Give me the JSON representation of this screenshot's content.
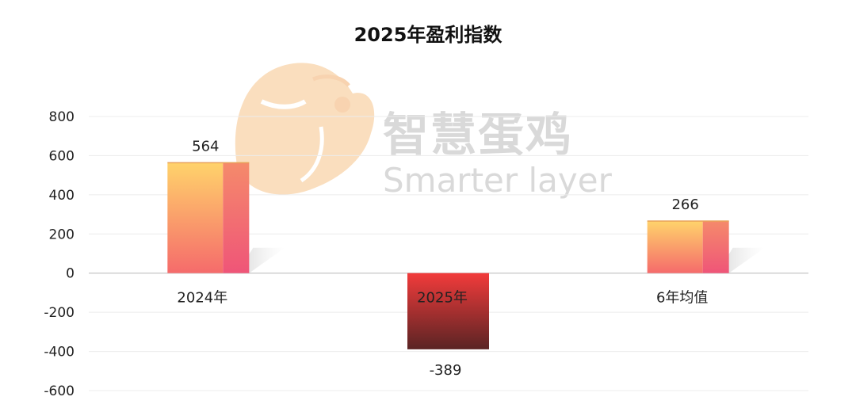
{
  "chart_data": {
    "type": "bar",
    "title": "2025年盈利指数",
    "categories": [
      "2024年",
      "2025年",
      "6年均值"
    ],
    "values": [
      564,
      -389,
      266
    ],
    "ylim": [
      -600,
      800
    ],
    "yticks": [
      800,
      600,
      400,
      200,
      0,
      -200,
      -400,
      -600
    ],
    "grid": true,
    "colors": {
      "positive_top": "#ffd36b",
      "positive_bottom": "#f56b6b",
      "positive_side": "#f0627a",
      "negative_top": "#f23b3b",
      "negative_bottom": "#5a2424",
      "highlight_label": "#d81e06"
    }
  },
  "watermark": {
    "cn": "智慧蛋鸡",
    "en": "Smarter layer",
    "logo": "chick-logo"
  }
}
